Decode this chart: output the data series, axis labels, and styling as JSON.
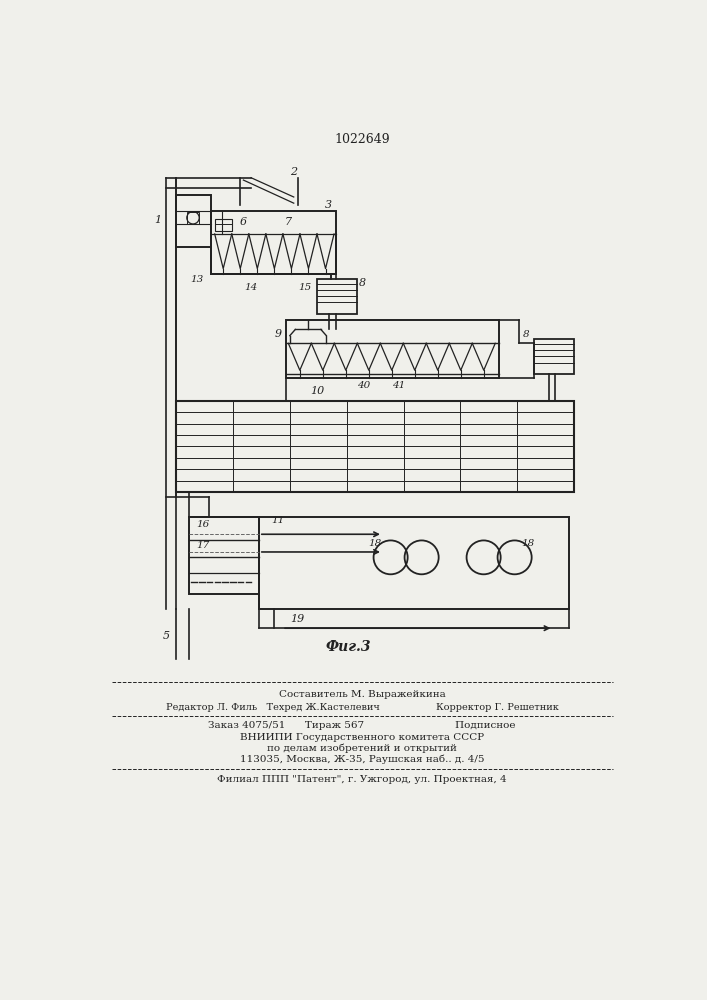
{
  "patent_number": "1022649",
  "fig_label": "Фиг.3",
  "background": "#f0f0eb",
  "line_color": "#222222",
  "footer_lines": [
    "Составитель М. Выражейкина",
    "Редактор Л. Филь   Техред Ж.Кастелевич                  Корректор Г. Решетник",
    "Заказ 4075/51      Тираж 567                            Подписное",
    "ВНИИПИ Государственного комитета СССР",
    "по делам изобретений и открытий",
    "113035, Москва, Ж-35, Раушская наб.. д. 4/5",
    "Филиал ППП \"Патент\", г. Ужгород, ул. Проектная, 4"
  ]
}
